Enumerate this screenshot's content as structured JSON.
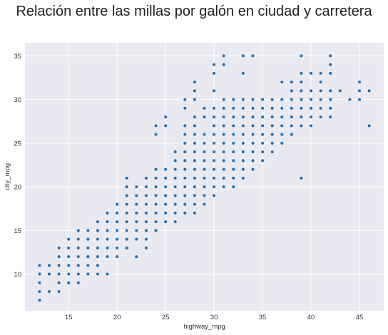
{
  "chart_data": {
    "type": "scatter",
    "title": "Relación entre las millas por galón en ciudad y carretera",
    "xlabel": "highway_mpg",
    "ylabel": "city_mpg",
    "xlim": [
      10.5,
      47.5
    ],
    "ylim": [
      5.8,
      36.5
    ],
    "xticks": [
      15,
      20,
      25,
      30,
      35,
      40,
      45
    ],
    "yticks": [
      10,
      15,
      20,
      25,
      30,
      35
    ],
    "grid": true,
    "point_color": "#1f6fb4",
    "background_color": "#e9e9f2",
    "points": [
      [
        12,
        7
      ],
      [
        12,
        8
      ],
      [
        12,
        9
      ],
      [
        12,
        10
      ],
      [
        12,
        11
      ],
      [
        13,
        8
      ],
      [
        13,
        10
      ],
      [
        13,
        11
      ],
      [
        14,
        8
      ],
      [
        14,
        9
      ],
      [
        14,
        10
      ],
      [
        14,
        11
      ],
      [
        14,
        12
      ],
      [
        14,
        13
      ],
      [
        15,
        9
      ],
      [
        15,
        10
      ],
      [
        15,
        11
      ],
      [
        15,
        12
      ],
      [
        15,
        13
      ],
      [
        15,
        14
      ],
      [
        16,
        9
      ],
      [
        16,
        10
      ],
      [
        16,
        11
      ],
      [
        16,
        12
      ],
      [
        16,
        13
      ],
      [
        16,
        14
      ],
      [
        16,
        15
      ],
      [
        17,
        10
      ],
      [
        17,
        11
      ],
      [
        17,
        12
      ],
      [
        17,
        13
      ],
      [
        17,
        14
      ],
      [
        17,
        15
      ],
      [
        18,
        10
      ],
      [
        18,
        11
      ],
      [
        18,
        12
      ],
      [
        18,
        13
      ],
      [
        18,
        14
      ],
      [
        18,
        15
      ],
      [
        18,
        16
      ],
      [
        19,
        10
      ],
      [
        19,
        12
      ],
      [
        19,
        13
      ],
      [
        19,
        14
      ],
      [
        19,
        15
      ],
      [
        19,
        16
      ],
      [
        19,
        17
      ],
      [
        20,
        12
      ],
      [
        20,
        13
      ],
      [
        20,
        14
      ],
      [
        20,
        15
      ],
      [
        20,
        16
      ],
      [
        20,
        17
      ],
      [
        20,
        18
      ],
      [
        21,
        13
      ],
      [
        21,
        14
      ],
      [
        21,
        15
      ],
      [
        21,
        16
      ],
      [
        21,
        17
      ],
      [
        21,
        18
      ],
      [
        21,
        19
      ],
      [
        21,
        20
      ],
      [
        21,
        21
      ],
      [
        22,
        12
      ],
      [
        22,
        14
      ],
      [
        22,
        15
      ],
      [
        22,
        16
      ],
      [
        22,
        17
      ],
      [
        22,
        18
      ],
      [
        22,
        19
      ],
      [
        22,
        20
      ],
      [
        23,
        13
      ],
      [
        23,
        14
      ],
      [
        23,
        15
      ],
      [
        23,
        16
      ],
      [
        23,
        17
      ],
      [
        23,
        18
      ],
      [
        23,
        19
      ],
      [
        23,
        20
      ],
      [
        23,
        21
      ],
      [
        24,
        15
      ],
      [
        24,
        16
      ],
      [
        24,
        17
      ],
      [
        24,
        18
      ],
      [
        24,
        19
      ],
      [
        24,
        20
      ],
      [
        24,
        21
      ],
      [
        24,
        22
      ],
      [
        24,
        26
      ],
      [
        24,
        27
      ],
      [
        25,
        16
      ],
      [
        25,
        17
      ],
      [
        25,
        18
      ],
      [
        25,
        19
      ],
      [
        25,
        20
      ],
      [
        25,
        21
      ],
      [
        25,
        22
      ],
      [
        25,
        27
      ],
      [
        25,
        28
      ],
      [
        26,
        16
      ],
      [
        26,
        17
      ],
      [
        26,
        18
      ],
      [
        26,
        19
      ],
      [
        26,
        20
      ],
      [
        26,
        21
      ],
      [
        26,
        22
      ],
      [
        26,
        23
      ],
      [
        26,
        24
      ],
      [
        27,
        17
      ],
      [
        27,
        18
      ],
      [
        27,
        19
      ],
      [
        27,
        20
      ],
      [
        27,
        21
      ],
      [
        27,
        22
      ],
      [
        27,
        23
      ],
      [
        27,
        24
      ],
      [
        27,
        25
      ],
      [
        27,
        26
      ],
      [
        27,
        27
      ],
      [
        27,
        29
      ],
      [
        27,
        30
      ],
      [
        28,
        17
      ],
      [
        28,
        18
      ],
      [
        28,
        19
      ],
      [
        28,
        20
      ],
      [
        28,
        21
      ],
      [
        28,
        22
      ],
      [
        28,
        23
      ],
      [
        28,
        24
      ],
      [
        28,
        25
      ],
      [
        28,
        26
      ],
      [
        28,
        27
      ],
      [
        28,
        28
      ],
      [
        28,
        30
      ],
      [
        28,
        31
      ],
      [
        28,
        32
      ],
      [
        29,
        18
      ],
      [
        29,
        19
      ],
      [
        29,
        20
      ],
      [
        29,
        21
      ],
      [
        29,
        22
      ],
      [
        29,
        23
      ],
      [
        29,
        24
      ],
      [
        29,
        25
      ],
      [
        29,
        26
      ],
      [
        29,
        28
      ],
      [
        29,
        29
      ],
      [
        30,
        19
      ],
      [
        30,
        20
      ],
      [
        30,
        21
      ],
      [
        30,
        22
      ],
      [
        30,
        23
      ],
      [
        30,
        24
      ],
      [
        30,
        25
      ],
      [
        30,
        26
      ],
      [
        30,
        27
      ],
      [
        30,
        28
      ],
      [
        30,
        29
      ],
      [
        30,
        31
      ],
      [
        30,
        33
      ],
      [
        30,
        34
      ],
      [
        31,
        20
      ],
      [
        31,
        21
      ],
      [
        31,
        22
      ],
      [
        31,
        23
      ],
      [
        31,
        24
      ],
      [
        31,
        25
      ],
      [
        31,
        26
      ],
      [
        31,
        27
      ],
      [
        31,
        28
      ],
      [
        31,
        29
      ],
      [
        31,
        30
      ],
      [
        31,
        34
      ],
      [
        31,
        35
      ],
      [
        32,
        20
      ],
      [
        32,
        21
      ],
      [
        32,
        22
      ],
      [
        32,
        23
      ],
      [
        32,
        24
      ],
      [
        32,
        25
      ],
      [
        32,
        26
      ],
      [
        32,
        27
      ],
      [
        32,
        28
      ],
      [
        32,
        29
      ],
      [
        32,
        30
      ],
      [
        33,
        21
      ],
      [
        33,
        22
      ],
      [
        33,
        23
      ],
      [
        33,
        24
      ],
      [
        33,
        25
      ],
      [
        33,
        26
      ],
      [
        33,
        27
      ],
      [
        33,
        28
      ],
      [
        33,
        29
      ],
      [
        33,
        30
      ],
      [
        33,
        33
      ],
      [
        33,
        35
      ],
      [
        34,
        22
      ],
      [
        34,
        23
      ],
      [
        34,
        24
      ],
      [
        34,
        25
      ],
      [
        34,
        26
      ],
      [
        34,
        27
      ],
      [
        34,
        28
      ],
      [
        34,
        29
      ],
      [
        34,
        30
      ],
      [
        34,
        35
      ],
      [
        35,
        23
      ],
      [
        35,
        24
      ],
      [
        35,
        25
      ],
      [
        35,
        26
      ],
      [
        35,
        27
      ],
      [
        35,
        28
      ],
      [
        35,
        29
      ],
      [
        35,
        30
      ],
      [
        36,
        24
      ],
      [
        36,
        25
      ],
      [
        36,
        26
      ],
      [
        36,
        27
      ],
      [
        36,
        28
      ],
      [
        36,
        29
      ],
      [
        36,
        30
      ],
      [
        37,
        25
      ],
      [
        37,
        26
      ],
      [
        37,
        27
      ],
      [
        37,
        28
      ],
      [
        37,
        29
      ],
      [
        37,
        30
      ],
      [
        37,
        32
      ],
      [
        38,
        26
      ],
      [
        38,
        27
      ],
      [
        38,
        28
      ],
      [
        38,
        29
      ],
      [
        38,
        30
      ],
      [
        38,
        31
      ],
      [
        38,
        32
      ],
      [
        39,
        21
      ],
      [
        39,
        27
      ],
      [
        39,
        28
      ],
      [
        39,
        29
      ],
      [
        39,
        30
      ],
      [
        39,
        31
      ],
      [
        39,
        32
      ],
      [
        39,
        33
      ],
      [
        39,
        35
      ],
      [
        40,
        27
      ],
      [
        40,
        28
      ],
      [
        40,
        29
      ],
      [
        40,
        30
      ],
      [
        40,
        31
      ],
      [
        40,
        33
      ],
      [
        41,
        28
      ],
      [
        41,
        29
      ],
      [
        41,
        30
      ],
      [
        41,
        31
      ],
      [
        41,
        32
      ],
      [
        41,
        33
      ],
      [
        42,
        28
      ],
      [
        42,
        29
      ],
      [
        42,
        30
      ],
      [
        42,
        31
      ],
      [
        42,
        33
      ],
      [
        42,
        34
      ],
      [
        42,
        35
      ],
      [
        43,
        31
      ],
      [
        44,
        30
      ],
      [
        45,
        30
      ],
      [
        45,
        31
      ],
      [
        45,
        32
      ],
      [
        46,
        27
      ],
      [
        46,
        31
      ]
    ]
  }
}
